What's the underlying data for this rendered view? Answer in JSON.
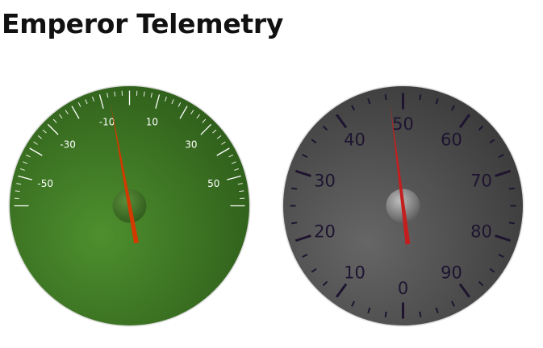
{
  "page": {
    "title": "Emperor Telemetry"
  },
  "gauges": [
    {
      "min": -60,
      "max": 60,
      "major_ticks": [
        -60,
        -50,
        -40,
        -30,
        -20,
        -10,
        0,
        10,
        20,
        30,
        40,
        50,
        60
      ],
      "labels": [
        "-50",
        "-30",
        "-10",
        "10",
        "30",
        "50"
      ],
      "value": -7,
      "face_color": "#3f7a26",
      "needle_color": "#d23a00"
    },
    {
      "min": 0,
      "max": 100,
      "major_ticks": [
        0,
        10,
        20,
        30,
        40,
        50,
        60,
        70,
        80,
        90
      ],
      "labels": [
        "0",
        "10",
        "20",
        "30",
        "40",
        "50",
        "60",
        "70",
        "80",
        "90"
      ],
      "value": 48,
      "face_color": "#4a4a4a",
      "needle_color": "#c41f1f"
    }
  ]
}
